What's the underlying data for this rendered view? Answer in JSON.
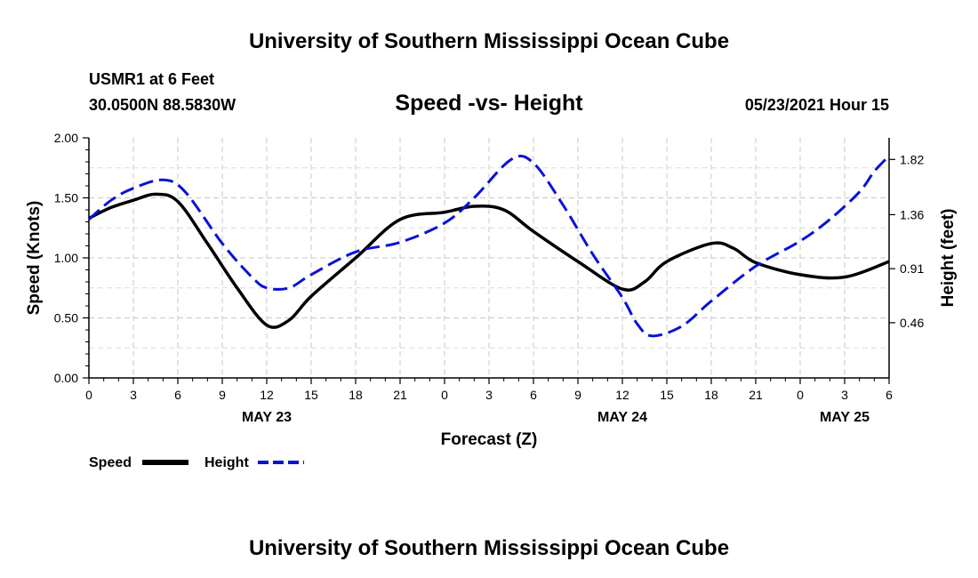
{
  "header": {
    "title": "University of Southern Mississippi Ocean Cube",
    "station": "USMR1 at 6 Feet",
    "coords": "30.0500N  88.5830W",
    "datetime": "05/23/2021 Hour 15"
  },
  "footer": {
    "title": "University of Southern Mississippi Ocean Cube"
  },
  "legend": {
    "speed": "Speed",
    "height": "Height"
  },
  "colors": {
    "speed": "#000000",
    "height": "#0a12d6",
    "grid": "#c8c8c8"
  },
  "chart_data": {
    "type": "line",
    "title": "Speed -vs- Height",
    "xlabel": "Forecast (Z)",
    "ylabel": "Speed (Knots)",
    "y2label": "Height (feet)",
    "x_range": [
      0,
      54
    ],
    "ylim": [
      0,
      2.0
    ],
    "y2lim": [
      0.0,
      2.0
    ],
    "x_ticks": [
      0,
      3,
      6,
      9,
      12,
      15,
      18,
      21,
      24,
      27,
      30,
      33,
      36,
      39,
      42,
      45,
      48,
      51,
      54
    ],
    "x_tick_labels": [
      "0",
      "3",
      "6",
      "9",
      "12",
      "15",
      "18",
      "21",
      "0",
      "3",
      "6",
      "9",
      "12",
      "15",
      "18",
      "21",
      "0",
      "3",
      "6"
    ],
    "date_labels": [
      {
        "x": 12,
        "label": "MAY 23"
      },
      {
        "x": 36,
        "label": "MAY 24"
      },
      {
        "x": 51,
        "label": "MAY 25"
      }
    ],
    "y_ticks": [
      0.0,
      0.5,
      1.0,
      1.5,
      2.0
    ],
    "y_tick_labels": [
      "0.00",
      "0.50",
      "1.00",
      "1.50",
      "2.00"
    ],
    "y2_ticks": [
      0.46,
      0.91,
      1.36,
      1.82
    ],
    "y2_tick_labels": [
      "0.46",
      "0.91",
      "1.36",
      "1.82"
    ],
    "series": [
      {
        "name": "Speed",
        "axis": "left",
        "style": "solid",
        "x": [
          0,
          1.5,
          3,
          4.5,
          6,
          8,
          10,
          12,
          13.5,
          15,
          18,
          21,
          24,
          26,
          28,
          30,
          33,
          36,
          37.5,
          39,
          42,
          43.5,
          45,
          48,
          51,
          54
        ],
        "y": [
          1.33,
          1.42,
          1.48,
          1.53,
          1.47,
          1.12,
          0.75,
          0.44,
          0.48,
          0.68,
          1.0,
          1.32,
          1.38,
          1.43,
          1.4,
          1.22,
          0.97,
          0.74,
          0.8,
          0.97,
          1.12,
          1.08,
          0.96,
          0.86,
          0.84,
          0.97
        ]
      },
      {
        "name": "Height",
        "axis": "right",
        "style": "dashed",
        "x": [
          0,
          1.5,
          3,
          5,
          6.5,
          9,
          11,
          12,
          13.5,
          15,
          18,
          21,
          24,
          26,
          28.5,
          30,
          32,
          34,
          36,
          37,
          38,
          40,
          42,
          45,
          48,
          50,
          52,
          53,
          54
        ],
        "y": [
          1.32,
          1.48,
          1.58,
          1.65,
          1.55,
          1.12,
          0.84,
          0.75,
          0.75,
          0.86,
          1.05,
          1.13,
          1.29,
          1.5,
          1.82,
          1.79,
          1.44,
          1.03,
          0.67,
          0.45,
          0.35,
          0.43,
          0.64,
          0.93,
          1.14,
          1.32,
          1.55,
          1.72,
          1.85
        ]
      }
    ]
  }
}
